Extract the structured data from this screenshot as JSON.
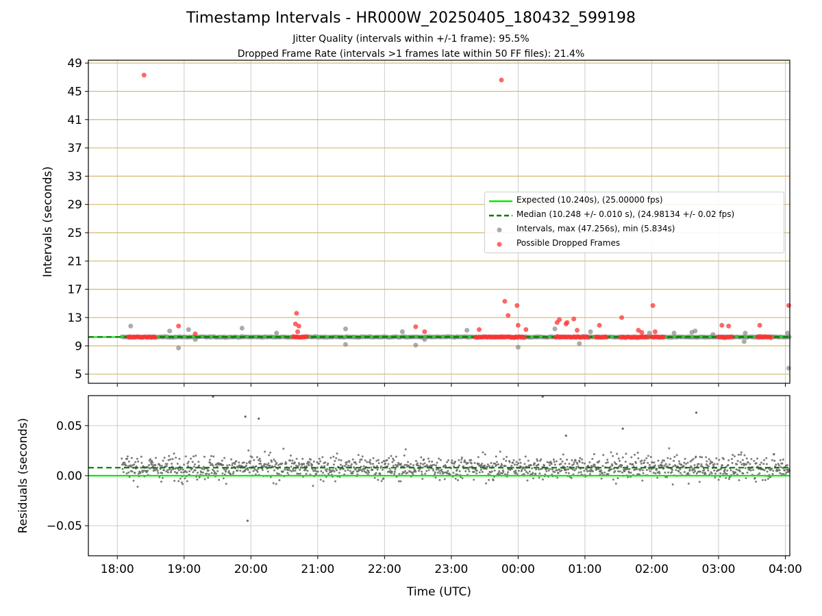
{
  "figure": {
    "title": "Timestamp Intervals - HR000W_20250405_180432_599198",
    "subtitle_jitter": "Jitter Quality (intervals within +/-1 frame): 95.5%",
    "subtitle_dropped": "Dropped Frame Rate (intervals >1 frames late within 50 FF files): 21.4%"
  },
  "colors": {
    "expected": "#00ee00",
    "median": "#007700",
    "intervals": "#888888",
    "dropped": "#ff3333",
    "hgrid": "#d4b96a",
    "vgrid": "#cccccc"
  },
  "chart_data": [
    {
      "type": "scatter",
      "xlabel": "",
      "ylabel": "Intervals (seconds)",
      "xlim": [
        "17:34",
        "04:04"
      ],
      "ylim": [
        3.7,
        49.4
      ],
      "yticks": [
        "5",
        "9",
        "13",
        "17",
        "21",
        "25",
        "29",
        "33",
        "37",
        "41",
        "45",
        "49"
      ],
      "grid": true,
      "legend_position": "center-right",
      "expected_interval": 10.24,
      "median_interval": 10.248,
      "legend": [
        "Expected (10.240s), (25.00000 fps)",
        "Median (10.248 +/- 0.010 s), (24.98134 +/- 0.02 fps)",
        "Intervals, max (47.256s), min (5.834s)",
        "Possible Dropped Frames"
      ],
      "interval_time_range": [
        "18:04",
        "04:04"
      ],
      "dropped_clusters": [
        {
          "start": "18:10",
          "end": "18:35",
          "y": 10.24
        },
        {
          "start": "20:38",
          "end": "20:50",
          "y": 10.24
        },
        {
          "start": "23:22",
          "end": "00:06",
          "y": 10.24
        },
        {
          "start": "00:34",
          "end": "01:03",
          "y": 10.24
        },
        {
          "start": "01:10",
          "end": "01:20",
          "y": 10.24
        },
        {
          "start": "01:32",
          "end": "01:47",
          "y": 10.24
        },
        {
          "start": "01:47",
          "end": "01:56",
          "y": 10.24
        },
        {
          "start": "02:00",
          "end": "02:12",
          "y": 10.24
        },
        {
          "start": "03:00",
          "end": "03:13",
          "y": 10.24
        },
        {
          "start": "03:35",
          "end": "03:48",
          "y": 10.24
        }
      ],
      "dropped_points": [
        {
          "t": "18:24",
          "y": 47.3
        },
        {
          "t": "23:45",
          "y": 46.6
        },
        {
          "t": "23:48",
          "y": 15.3
        },
        {
          "t": "23:51",
          "y": 13.3
        },
        {
          "t": "23:59",
          "y": 14.7
        },
        {
          "t": "00:00",
          "y": 11.9
        },
        {
          "t": "00:07",
          "y": 11.3
        },
        {
          "t": "00:35",
          "y": 12.3
        },
        {
          "t": "00:37",
          "y": 12.7
        },
        {
          "t": "00:43",
          "y": 12.1
        },
        {
          "t": "00:44",
          "y": 12.3
        },
        {
          "t": "00:50",
          "y": 12.8
        },
        {
          "t": "00:53",
          "y": 11.2
        },
        {
          "t": "01:13",
          "y": 11.9
        },
        {
          "t": "01:33",
          "y": 13.0
        },
        {
          "t": "01:48",
          "y": 11.2
        },
        {
          "t": "01:51",
          "y": 10.9
        },
        {
          "t": "02:01",
          "y": 14.7
        },
        {
          "t": "02:03",
          "y": 11.0
        },
        {
          "t": "03:03",
          "y": 11.9
        },
        {
          "t": "03:09",
          "y": 11.8
        },
        {
          "t": "03:37",
          "y": 11.9
        },
        {
          "t": "04:03",
          "y": 14.7
        },
        {
          "t": "20:41",
          "y": 13.6
        },
        {
          "t": "20:40",
          "y": 12.1
        },
        {
          "t": "20:43",
          "y": 11.8
        },
        {
          "t": "20:42",
          "y": 11.0
        },
        {
          "t": "18:55",
          "y": 11.8
        },
        {
          "t": "19:10",
          "y": 10.7
        },
        {
          "t": "22:28",
          "y": 11.7
        },
        {
          "t": "22:36",
          "y": 11.0
        },
        {
          "t": "23:25",
          "y": 11.3
        }
      ],
      "interval_outliers": [
        {
          "t": "18:12",
          "y": 11.8
        },
        {
          "t": "18:47",
          "y": 11.1
        },
        {
          "t": "18:55",
          "y": 8.7
        },
        {
          "t": "19:04",
          "y": 11.3
        },
        {
          "t": "19:10",
          "y": 9.9
        },
        {
          "t": "19:52",
          "y": 11.5
        },
        {
          "t": "20:23",
          "y": 10.8
        },
        {
          "t": "21:25",
          "y": 11.4
        },
        {
          "t": "21:25",
          "y": 9.2
        },
        {
          "t": "22:16",
          "y": 11.0
        },
        {
          "t": "22:28",
          "y": 9.1
        },
        {
          "t": "22:36",
          "y": 9.9
        },
        {
          "t": "23:14",
          "y": 11.2
        },
        {
          "t": "00:00",
          "y": 8.8
        },
        {
          "t": "00:33",
          "y": 11.4
        },
        {
          "t": "00:55",
          "y": 9.3
        },
        {
          "t": "01:05",
          "y": 11.0
        },
        {
          "t": "01:58",
          "y": 10.8
        },
        {
          "t": "02:20",
          "y": 10.8
        },
        {
          "t": "02:36",
          "y": 10.9
        },
        {
          "t": "02:39",
          "y": 11.1
        },
        {
          "t": "02:55",
          "y": 10.6
        },
        {
          "t": "03:23",
          "y": 9.6
        },
        {
          "t": "03:24",
          "y": 10.8
        },
        {
          "t": "04:02",
          "y": 10.8
        },
        {
          "t": "04:03",
          "y": 5.834
        }
      ]
    },
    {
      "type": "scatter",
      "xlabel": "Time (UTC)",
      "ylabel": "Residuals (seconds)",
      "xlim": [
        "17:34",
        "04:04"
      ],
      "ylim": [
        -0.08,
        0.08
      ],
      "yticks": [
        "−0.05",
        "0.00",
        "0.05"
      ],
      "xticks": [
        "18:00",
        "19:00",
        "20:00",
        "21:00",
        "22:00",
        "23:00",
        "00:00",
        "01:00",
        "02:00",
        "03:00",
        "04:00"
      ],
      "grid": true,
      "expected_residual": 0.0,
      "median_residual": 0.008,
      "residual_spread": [
        -0.03,
        0.04
      ],
      "residual_outliers": [
        {
          "t": "19:57",
          "y": -0.045
        },
        {
          "t": "19:55",
          "y": 0.059
        },
        {
          "t": "20:07",
          "y": 0.057
        },
        {
          "t": "02:40",
          "y": 0.063
        },
        {
          "t": "00:22",
          "y": 0.079
        },
        {
          "t": "19:26",
          "y": 0.079
        },
        {
          "t": "01:34",
          "y": 0.047
        },
        {
          "t": "00:43",
          "y": 0.04
        }
      ]
    }
  ]
}
